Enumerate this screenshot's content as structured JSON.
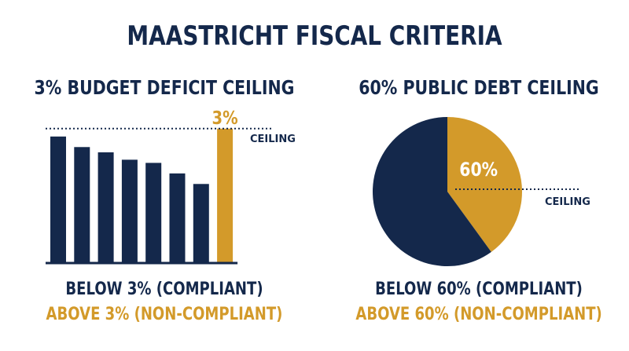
{
  "title": "MAASTRICHT FISCAL CRITERIA",
  "colors": {
    "navy": "#14284b",
    "gold": "#d39a2a",
    "background": "#ffffff"
  },
  "chart_data": [
    {
      "type": "bar",
      "title": "3% BUDGET DEFICIT CEILING",
      "categories": [
        "",
        "",
        "",
        "",
        "",
        "",
        "",
        ""
      ],
      "values": [
        2.4,
        2.2,
        2.1,
        1.96,
        1.9,
        1.7,
        1.5,
        2.55
      ],
      "highlight_index": 7,
      "highlight_label": "3%",
      "reference_label": "CEILING",
      "reference_value": 2.55,
      "ylim": [
        0,
        2.8
      ],
      "grid": false,
      "legend": [
        "BELOW 3% (COMPLIANT)",
        "ABOVE 3% (NON-COMPLIANT)"
      ]
    },
    {
      "type": "pie",
      "title": "60% PUBLIC DEBT CEILING",
      "slices": [
        {
          "label": "60%",
          "value": 40,
          "color": "#d39a2a"
        },
        {
          "label": "",
          "value": 60,
          "color": "#14284b"
        }
      ],
      "reference_label": "CEILING",
      "legend": [
        "BELOW 60% (COMPLIANT)",
        "ABOVE 60% (NON-COMPLIANT)"
      ]
    }
  ]
}
